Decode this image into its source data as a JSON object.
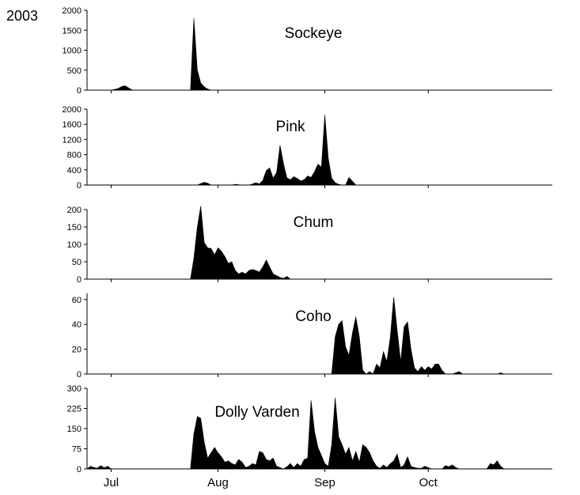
{
  "year_label": "2003",
  "colors": {
    "fill": "#000000",
    "axis": "#000000",
    "background": "#ffffff"
  },
  "chart_data": {
    "type": "area",
    "x_unit": "day of year 2003",
    "xlim": [
      "2003-06-24",
      "2003-11-06"
    ],
    "x_ticks": [
      {
        "label": "Jul",
        "date": "2003-07-01"
      },
      {
        "label": "Aug",
        "date": "2003-08-01"
      },
      {
        "label": "Sep",
        "date": "2003-09-01"
      },
      {
        "label": "Oct",
        "date": "2003-10-01"
      }
    ],
    "panels": [
      {
        "name": "Sockeye",
        "ylim": [
          0,
          2000
        ],
        "yticks": [
          0,
          500,
          1000,
          1500,
          2000
        ],
        "points": [
          [
            "2003-07-01",
            0
          ],
          [
            "2003-07-03",
            40
          ],
          [
            "2003-07-04",
            90
          ],
          [
            "2003-07-05",
            110
          ],
          [
            "2003-07-06",
            60
          ],
          [
            "2003-07-07",
            10
          ],
          [
            "2003-07-08",
            0
          ],
          [
            "2003-07-24",
            0
          ],
          [
            "2003-07-25",
            1800
          ],
          [
            "2003-07-26",
            500
          ],
          [
            "2003-07-27",
            180
          ],
          [
            "2003-07-28",
            80
          ],
          [
            "2003-07-29",
            30
          ],
          [
            "2003-07-30",
            0
          ]
        ]
      },
      {
        "name": "Pink",
        "ylim": [
          0,
          2000
        ],
        "yticks": [
          0,
          400,
          800,
          1200,
          1600,
          2000
        ],
        "points": [
          [
            "2003-07-26",
            0
          ],
          [
            "2003-07-27",
            40
          ],
          [
            "2003-07-28",
            70
          ],
          [
            "2003-07-29",
            50
          ],
          [
            "2003-07-30",
            0
          ],
          [
            "2003-08-05",
            0
          ],
          [
            "2003-08-06",
            20
          ],
          [
            "2003-08-07",
            10
          ],
          [
            "2003-08-08",
            0
          ],
          [
            "2003-08-10",
            0
          ],
          [
            "2003-08-11",
            30
          ],
          [
            "2003-08-12",
            60
          ],
          [
            "2003-08-13",
            30
          ],
          [
            "2003-08-14",
            120
          ],
          [
            "2003-08-15",
            380
          ],
          [
            "2003-08-16",
            450
          ],
          [
            "2003-08-17",
            180
          ],
          [
            "2003-08-18",
            330
          ],
          [
            "2003-08-19",
            1050
          ],
          [
            "2003-08-20",
            560
          ],
          [
            "2003-08-21",
            190
          ],
          [
            "2003-08-22",
            140
          ],
          [
            "2003-08-23",
            220
          ],
          [
            "2003-08-24",
            170
          ],
          [
            "2003-08-25",
            110
          ],
          [
            "2003-08-26",
            140
          ],
          [
            "2003-08-27",
            240
          ],
          [
            "2003-08-28",
            200
          ],
          [
            "2003-08-29",
            350
          ],
          [
            "2003-08-30",
            550
          ],
          [
            "2003-08-31",
            470
          ],
          [
            "2003-09-01",
            1850
          ],
          [
            "2003-09-02",
            700
          ],
          [
            "2003-09-03",
            180
          ],
          [
            "2003-09-04",
            60
          ],
          [
            "2003-09-05",
            20
          ],
          [
            "2003-09-06",
            0
          ],
          [
            "2003-09-07",
            0
          ],
          [
            "2003-09-08",
            200
          ],
          [
            "2003-09-09",
            100
          ],
          [
            "2003-09-10",
            0
          ]
        ]
      },
      {
        "name": "Chum",
        "ylim": [
          0,
          200
        ],
        "yticks": [
          0,
          50,
          100,
          150,
          200
        ],
        "points": [
          [
            "2003-07-24",
            0
          ],
          [
            "2003-07-25",
            60
          ],
          [
            "2003-07-26",
            150
          ],
          [
            "2003-07-27",
            210
          ],
          [
            "2003-07-28",
            105
          ],
          [
            "2003-07-29",
            90
          ],
          [
            "2003-07-30",
            88
          ],
          [
            "2003-07-31",
            70
          ],
          [
            "2003-08-01",
            90
          ],
          [
            "2003-08-02",
            80
          ],
          [
            "2003-08-03",
            65
          ],
          [
            "2003-08-04",
            45
          ],
          [
            "2003-08-05",
            50
          ],
          [
            "2003-08-06",
            25
          ],
          [
            "2003-08-07",
            15
          ],
          [
            "2003-08-08",
            20
          ],
          [
            "2003-08-09",
            15
          ],
          [
            "2003-08-10",
            25
          ],
          [
            "2003-08-11",
            28
          ],
          [
            "2003-08-12",
            25
          ],
          [
            "2003-08-13",
            20
          ],
          [
            "2003-08-14",
            35
          ],
          [
            "2003-08-15",
            55
          ],
          [
            "2003-08-16",
            35
          ],
          [
            "2003-08-17",
            15
          ],
          [
            "2003-08-18",
            10
          ],
          [
            "2003-08-19",
            5
          ],
          [
            "2003-08-20",
            2
          ],
          [
            "2003-08-21",
            8
          ],
          [
            "2003-08-22",
            0
          ]
        ]
      },
      {
        "name": "Coho",
        "ylim": [
          0,
          65
        ],
        "yticks": [
          0,
          20,
          40,
          60
        ],
        "points": [
          [
            "2003-09-03",
            0
          ],
          [
            "2003-09-04",
            30
          ],
          [
            "2003-09-05",
            40
          ],
          [
            "2003-09-06",
            43
          ],
          [
            "2003-09-07",
            22
          ],
          [
            "2003-09-08",
            15
          ],
          [
            "2003-09-09",
            33
          ],
          [
            "2003-09-10",
            46
          ],
          [
            "2003-09-11",
            30
          ],
          [
            "2003-09-12",
            3
          ],
          [
            "2003-09-13",
            0
          ],
          [
            "2003-09-14",
            2
          ],
          [
            "2003-09-15",
            0
          ],
          [
            "2003-09-16",
            8
          ],
          [
            "2003-09-17",
            5
          ],
          [
            "2003-09-18",
            18
          ],
          [
            "2003-09-19",
            10
          ],
          [
            "2003-09-20",
            30
          ],
          [
            "2003-09-21",
            62
          ],
          [
            "2003-09-22",
            35
          ],
          [
            "2003-09-23",
            10
          ],
          [
            "2003-09-24",
            38
          ],
          [
            "2003-09-25",
            42
          ],
          [
            "2003-09-26",
            20
          ],
          [
            "2003-09-27",
            5
          ],
          [
            "2003-09-28",
            2
          ],
          [
            "2003-09-29",
            6
          ],
          [
            "2003-09-30",
            3
          ],
          [
            "2003-10-01",
            6
          ],
          [
            "2003-10-02",
            4
          ],
          [
            "2003-10-03",
            8
          ],
          [
            "2003-10-04",
            8
          ],
          [
            "2003-10-05",
            3
          ],
          [
            "2003-10-06",
            0
          ],
          [
            "2003-10-08",
            0
          ],
          [
            "2003-10-09",
            1
          ],
          [
            "2003-10-10",
            2
          ],
          [
            "2003-10-11",
            0
          ],
          [
            "2003-10-21",
            0
          ],
          [
            "2003-10-22",
            1
          ],
          [
            "2003-10-23",
            0
          ]
        ]
      },
      {
        "name": "Dolly Varden",
        "ylim": [
          0,
          300
        ],
        "yticks": [
          0,
          75,
          150,
          225,
          300
        ],
        "points": [
          [
            "2003-06-24",
            0
          ],
          [
            "2003-06-25",
            10
          ],
          [
            "2003-06-26",
            5
          ],
          [
            "2003-06-27",
            3
          ],
          [
            "2003-06-28",
            12
          ],
          [
            "2003-06-29",
            4
          ],
          [
            "2003-06-30",
            10
          ],
          [
            "2003-07-01",
            0
          ],
          [
            "2003-07-24",
            0
          ],
          [
            "2003-07-25",
            130
          ],
          [
            "2003-07-26",
            195
          ],
          [
            "2003-07-27",
            188
          ],
          [
            "2003-07-28",
            100
          ],
          [
            "2003-07-29",
            40
          ],
          [
            "2003-07-30",
            60
          ],
          [
            "2003-07-31",
            80
          ],
          [
            "2003-08-01",
            60
          ],
          [
            "2003-08-02",
            45
          ],
          [
            "2003-08-03",
            25
          ],
          [
            "2003-08-04",
            30
          ],
          [
            "2003-08-05",
            20
          ],
          [
            "2003-08-06",
            15
          ],
          [
            "2003-08-07",
            35
          ],
          [
            "2003-08-08",
            25
          ],
          [
            "2003-08-09",
            5
          ],
          [
            "2003-08-10",
            10
          ],
          [
            "2003-08-11",
            20
          ],
          [
            "2003-08-12",
            15
          ],
          [
            "2003-08-13",
            65
          ],
          [
            "2003-08-14",
            60
          ],
          [
            "2003-08-15",
            35
          ],
          [
            "2003-08-16",
            30
          ],
          [
            "2003-08-17",
            40
          ],
          [
            "2003-08-18",
            10
          ],
          [
            "2003-08-19",
            5
          ],
          [
            "2003-08-20",
            0
          ],
          [
            "2003-08-21",
            8
          ],
          [
            "2003-08-22",
            20
          ],
          [
            "2003-08-23",
            5
          ],
          [
            "2003-08-24",
            20
          ],
          [
            "2003-08-25",
            10
          ],
          [
            "2003-08-26",
            35
          ],
          [
            "2003-08-27",
            40
          ],
          [
            "2003-08-28",
            255
          ],
          [
            "2003-08-29",
            140
          ],
          [
            "2003-08-30",
            80
          ],
          [
            "2003-08-31",
            50
          ],
          [
            "2003-09-01",
            20
          ],
          [
            "2003-09-02",
            10
          ],
          [
            "2003-09-03",
            90
          ],
          [
            "2003-09-04",
            265
          ],
          [
            "2003-09-05",
            120
          ],
          [
            "2003-09-06",
            90
          ],
          [
            "2003-09-07",
            55
          ],
          [
            "2003-09-08",
            80
          ],
          [
            "2003-09-09",
            30
          ],
          [
            "2003-09-10",
            65
          ],
          [
            "2003-09-11",
            25
          ],
          [
            "2003-09-12",
            90
          ],
          [
            "2003-09-13",
            80
          ],
          [
            "2003-09-14",
            60
          ],
          [
            "2003-09-15",
            30
          ],
          [
            "2003-09-16",
            10
          ],
          [
            "2003-09-17",
            2
          ],
          [
            "2003-09-18",
            15
          ],
          [
            "2003-09-19",
            5
          ],
          [
            "2003-09-20",
            20
          ],
          [
            "2003-09-21",
            30
          ],
          [
            "2003-09-22",
            55
          ],
          [
            "2003-09-23",
            5
          ],
          [
            "2003-09-24",
            15
          ],
          [
            "2003-09-25",
            45
          ],
          [
            "2003-09-26",
            10
          ],
          [
            "2003-09-27",
            5
          ],
          [
            "2003-09-28",
            3
          ],
          [
            "2003-09-29",
            2
          ],
          [
            "2003-09-30",
            10
          ],
          [
            "2003-10-01",
            5
          ],
          [
            "2003-10-02",
            0
          ],
          [
            "2003-10-05",
            0
          ],
          [
            "2003-10-06",
            12
          ],
          [
            "2003-10-07",
            8
          ],
          [
            "2003-10-08",
            15
          ],
          [
            "2003-10-09",
            5
          ],
          [
            "2003-10-10",
            0
          ],
          [
            "2003-10-18",
            0
          ],
          [
            "2003-10-19",
            20
          ],
          [
            "2003-10-20",
            15
          ],
          [
            "2003-10-21",
            30
          ],
          [
            "2003-10-22",
            10
          ],
          [
            "2003-10-23",
            0
          ]
        ]
      }
    ]
  }
}
